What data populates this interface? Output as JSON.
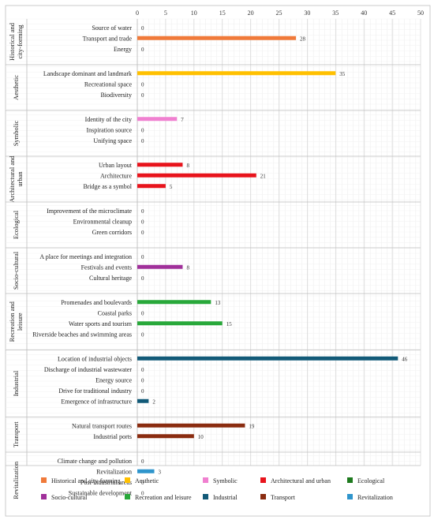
{
  "chart_data": {
    "type": "bar",
    "orientation": "horizontal",
    "xlim": [
      0,
      50
    ],
    "xticks": [
      0,
      5,
      10,
      15,
      20,
      25,
      30,
      35,
      40,
      45,
      50
    ],
    "grid": true,
    "legend_position": "bottom",
    "groups": [
      {
        "name": "Historical and city-forming",
        "color": "#f07a3a",
        "items": [
          {
            "label": "Source of water",
            "value": 0
          },
          {
            "label": "Transport and trade",
            "value": 28
          },
          {
            "label": "Energy",
            "value": 0
          }
        ]
      },
      {
        "name": "Aesthetic",
        "color": "#ffc000",
        "items": [
          {
            "label": "Landscape dominant and landmark",
            "value": 35
          },
          {
            "label": "Recreational space",
            "value": 0
          },
          {
            "label": "Biodiversity",
            "value": 0
          }
        ]
      },
      {
        "name": "Symbolic",
        "color": "#f080d0",
        "items": [
          {
            "label": "Identity of the city",
            "value": 7
          },
          {
            "label": "Inspiration source",
            "value": 0
          },
          {
            "label": "Unifying space",
            "value": 0
          }
        ]
      },
      {
        "name": "Architectural and urban",
        "color": "#e8141c",
        "items": [
          {
            "label": "Urban layout",
            "value": 8
          },
          {
            "label": "Architecture",
            "value": 21
          },
          {
            "label": "Bridge as a symbol",
            "value": 5
          }
        ]
      },
      {
        "name": "Ecological",
        "color": "#1e7a1e",
        "items": [
          {
            "label": "Improvement of the microclimate",
            "value": 0
          },
          {
            "label": "Environmental cleanup",
            "value": 0
          },
          {
            "label": "Green corridors",
            "value": 0
          }
        ]
      },
      {
        "name": "Socio-cultural",
        "color": "#a0309a",
        "items": [
          {
            "label": "A place for meetings and integration",
            "value": 0
          },
          {
            "label": "Festivals and events",
            "value": 8
          },
          {
            "label": "Cultural heritage",
            "value": 0
          }
        ]
      },
      {
        "name": "Recreation and leisure",
        "color": "#28a83a",
        "items": [
          {
            "label": "Promenades and boulevards",
            "value": 13
          },
          {
            "label": "Coastal parks",
            "value": 0
          },
          {
            "label": "Water sports and tourism",
            "value": 15
          },
          {
            "label": "Riverside beaches and swimming areas",
            "value": 0
          }
        ]
      },
      {
        "name": "Industrial",
        "color": "#125a78",
        "items": [
          {
            "label": "Location of industrial objects",
            "value": 46
          },
          {
            "label": "Discharge of industrial wastewater",
            "value": 0
          },
          {
            "label": "Energy source",
            "value": 0
          },
          {
            "label": "Drive for traditional industry",
            "value": 0
          },
          {
            "label": "Emergence of infrastructure",
            "value": 2
          }
        ]
      },
      {
        "name": "Transport",
        "color": "#8a2c10",
        "items": [
          {
            "label": "Natural transport routes",
            "value": 19
          },
          {
            "label": "Industrial ports",
            "value": 10
          }
        ]
      },
      {
        "name": "Revitalization",
        "color": "#2f95cc",
        "items": [
          {
            "label": "Climate change and pollution",
            "value": 0
          },
          {
            "label": "Revitalization",
            "value": 3
          },
          {
            "label": "Post-industrial areas",
            "value": 0
          },
          {
            "label": "Sustainable development",
            "value": 0
          }
        ]
      }
    ]
  }
}
